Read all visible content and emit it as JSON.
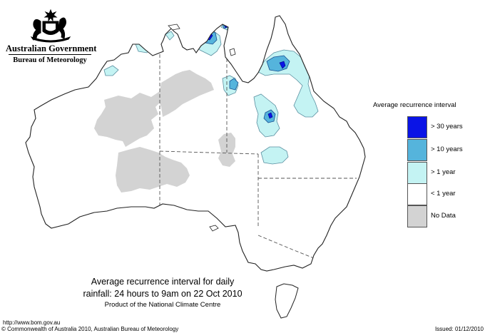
{
  "header": {
    "government": "Australian Government",
    "department": "Bureau of Meteorology"
  },
  "legend": {
    "title": "Average recurrence interval",
    "items": [
      {
        "label": "> 30 years",
        "color": "#0a14e6"
      },
      {
        "label": "> 10 years",
        "color": "#55b4dc"
      },
      {
        "label": "> 1 year",
        "color": "#c4f3f3"
      },
      {
        "label": "< 1 year",
        "color": "#ffffff"
      },
      {
        "label": "No Data",
        "color": "#d3d3d3"
      }
    ]
  },
  "caption": {
    "line1": "Average recurrence interval for daily",
    "line2": "rainfall: 24 hours to 9am on 22 Oct 2010",
    "line3": "Product of the National Climate Centre"
  },
  "footer": {
    "url": "http://www.bom.gov.au",
    "copyright": "© Commonwealth of Australia 2010, Australian Bureau of Meteorology",
    "issued": "Issued: 01/12/2010"
  },
  "colors": {
    "no_data": "#d3d3d3",
    "over_1yr": "#c4f3f3",
    "over_10yr": "#55b4dc",
    "over_30yr": "#0a14e6"
  }
}
